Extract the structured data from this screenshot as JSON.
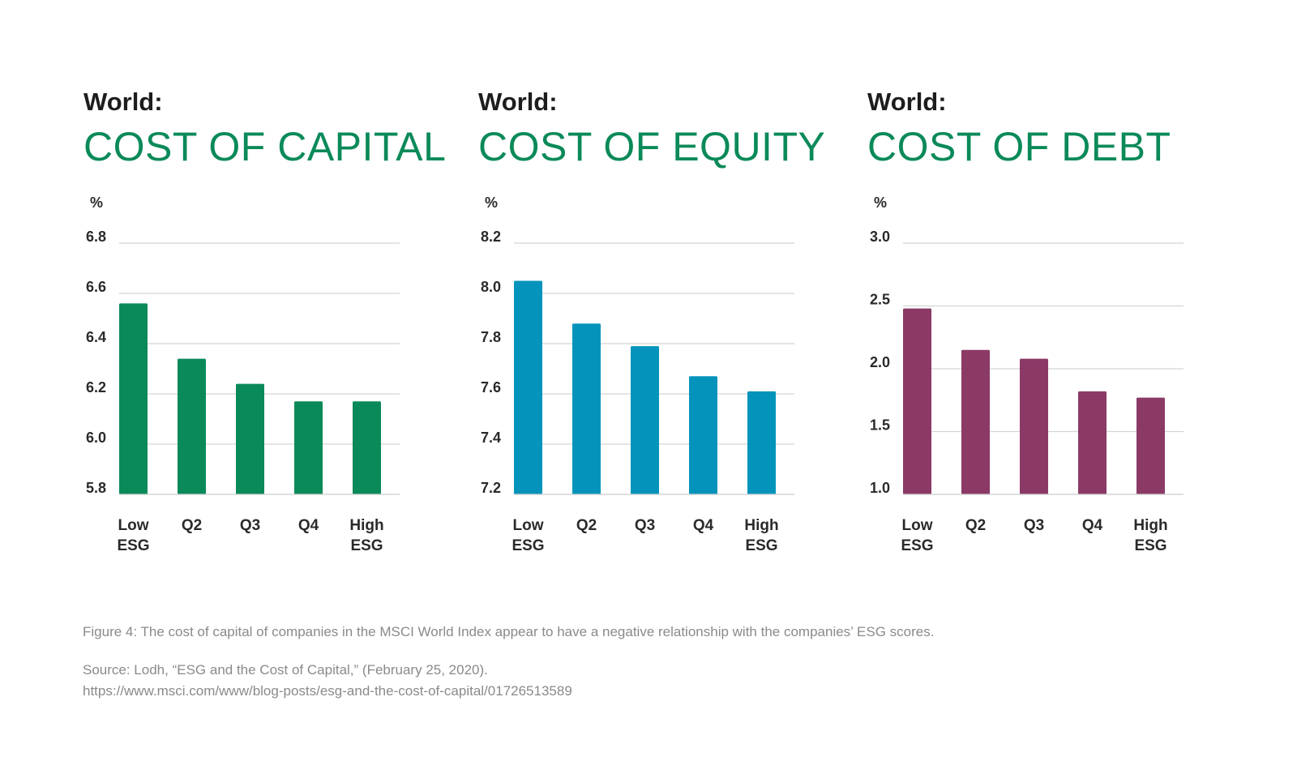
{
  "chart_data": [
    {
      "type": "bar",
      "title_prefix": "World:",
      "title": "COST OF CAPITAL",
      "ylabel": "%",
      "color": "#0b8a59",
      "categories": [
        [
          "Low",
          "ESG"
        ],
        [
          "Q2"
        ],
        [
          "Q3"
        ],
        [
          "Q4"
        ],
        [
          "High",
          "ESG"
        ]
      ],
      "values": [
        6.56,
        6.34,
        6.24,
        6.17,
        6.17
      ],
      "ylim": [
        5.8,
        6.8
      ],
      "yticks": [
        "5.8",
        "6.0",
        "6.2",
        "6.4",
        "6.6",
        "6.8"
      ],
      "grid": true
    },
    {
      "type": "bar",
      "title_prefix": "World:",
      "title": "COST OF EQUITY",
      "ylabel": "%",
      "color": "#0494bb",
      "categories": [
        [
          "Low",
          "ESG"
        ],
        [
          "Q2"
        ],
        [
          "Q3"
        ],
        [
          "Q4"
        ],
        [
          "High",
          "ESG"
        ]
      ],
      "values": [
        8.05,
        7.88,
        7.79,
        7.67,
        7.61
      ],
      "ylim": [
        7.2,
        8.2
      ],
      "yticks": [
        "7.2",
        "7.4",
        "7.6",
        "7.8",
        "8.0",
        "8.2"
      ],
      "grid": true
    },
    {
      "type": "bar",
      "title_prefix": "World:",
      "title": "COST OF DEBT",
      "ylabel": "%",
      "color": "#8b3a66",
      "categories": [
        [
          "Low",
          "ESG"
        ],
        [
          "Q2"
        ],
        [
          "Q3"
        ],
        [
          "Q4"
        ],
        [
          "High",
          "ESG"
        ]
      ],
      "values": [
        2.48,
        2.15,
        2.08,
        1.82,
        1.77
      ],
      "ylim": [
        1.0,
        3.0
      ],
      "yticks": [
        "1.0",
        "1.5",
        "2.0",
        "2.5",
        "3.0"
      ],
      "grid": true
    }
  ],
  "caption": "Figure 4: The cost of capital of companies in the MSCI World Index appear to have a negative relationship with the companies’ ESG scores.",
  "source_line1": "Source: Lodh, “ESG and the Cost of Capital,” (February 25, 2020).",
  "source_line2": "https://www.msci.com/www/blog-posts/esg-and-the-cost-of-capital/01726513589"
}
